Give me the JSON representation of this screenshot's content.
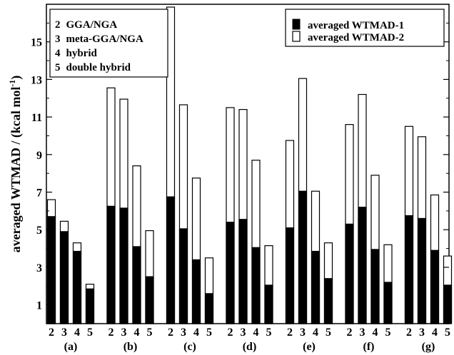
{
  "chart_data": {
    "type": "bar",
    "ylabel": "averaged WTMAD / (kcal mol",
    "ylabel_sup": "-1",
    "ylabel_close": ")",
    "ylim": [
      0,
      17
    ],
    "yticks": [
      1,
      3,
      5,
      7,
      9,
      11,
      13,
      15
    ],
    "groups": [
      "(a)",
      "(b)",
      "(c)",
      "(d)",
      "(e)",
      "(f)",
      "(g)"
    ],
    "subcategories": [
      "2",
      "3",
      "4",
      "5"
    ],
    "legend_left": [
      {
        "num": "2",
        "text": "GGA/NGA"
      },
      {
        "num": "3",
        "text": "meta-GGA/NGA"
      },
      {
        "num": "4",
        "text": "hybrid"
      },
      {
        "num": "5",
        "text": "double hybrid"
      }
    ],
    "series": [
      {
        "name": "averaged WTMAD-1",
        "fill": "#000000",
        "values": [
          [
            5.7,
            4.9,
            3.85,
            1.85
          ],
          [
            6.25,
            6.15,
            4.1,
            2.5
          ],
          [
            6.75,
            5.05,
            3.4,
            1.6
          ],
          [
            5.4,
            5.55,
            4.05,
            2.05
          ],
          [
            5.1,
            7.05,
            3.85,
            2.4
          ],
          [
            5.3,
            6.2,
            3.95,
            2.2
          ],
          [
            5.75,
            5.6,
            3.9,
            2.05
          ]
        ]
      },
      {
        "name": "averaged WTMAD-2",
        "fill": "#ffffff",
        "values": [
          [
            6.6,
            5.45,
            4.3,
            2.1
          ],
          [
            12.55,
            11.95,
            8.4,
            4.95
          ],
          [
            16.85,
            11.65,
            7.75,
            3.5
          ],
          [
            11.5,
            11.4,
            8.7,
            4.15
          ],
          [
            9.75,
            13.05,
            7.05,
            4.3
          ],
          [
            10.6,
            12.2,
            7.9,
            4.2
          ],
          [
            10.5,
            9.95,
            6.85,
            3.6
          ]
        ]
      }
    ],
    "legend_position": "top-right",
    "grid": false
  }
}
